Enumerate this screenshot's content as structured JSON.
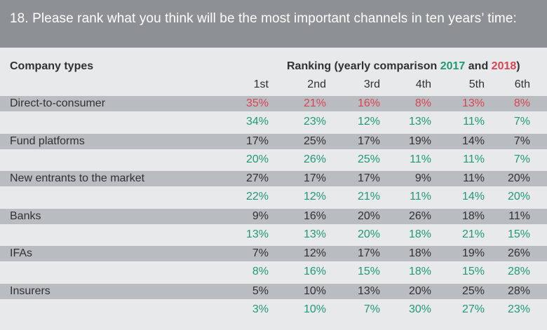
{
  "header": {
    "title": "18. Please rank what you think will be the most important channels in ten years’ time:"
  },
  "table": {
    "company_types_label": "Company types",
    "ranking_prefix": "Ranking (yearly comparison ",
    "ranking_year_a": "2017",
    "ranking_and": " and ",
    "ranking_year_b": "2018",
    "ranking_suffix": ")",
    "columns": [
      "1st",
      "2nd",
      "3rd",
      "4th",
      "5th",
      "6th"
    ]
  },
  "colors": {
    "banner": "#8d9196",
    "band": "#b9bdc2",
    "green": "#1f9a76",
    "red": "#d94452",
    "text": "#2f3133"
  },
  "chart_data": {
    "type": "table",
    "title": "18. Please rank what you think will be the most important channels in ten years’ time:",
    "columns": [
      "1st",
      "2nd",
      "3rd",
      "4th",
      "5th",
      "6th"
    ],
    "rows": [
      {
        "label": "Direct-to-consumer",
        "first_line": [
          "35%",
          "21%",
          "16%",
          "8%",
          "13%",
          "8%"
        ],
        "first_color": "red",
        "second_line": [
          "34%",
          "23%",
          "12%",
          "13%",
          "11%",
          "7%"
        ]
      },
      {
        "label": "Fund platforms",
        "first_line": [
          "17%",
          "25%",
          "17%",
          "19%",
          "14%",
          "7%"
        ],
        "first_color": "dark",
        "second_line": [
          "20%",
          "26%",
          "25%",
          "11%",
          "11%",
          "7%"
        ]
      },
      {
        "label": "New entrants to the market",
        "first_line": [
          "27%",
          "17%",
          "17%",
          "9%",
          "11%",
          "20%"
        ],
        "first_color": "dark",
        "second_line": [
          "22%",
          "12%",
          "21%",
          "11%",
          "14%",
          "20%"
        ]
      },
      {
        "label": "Banks",
        "first_line": [
          "9%",
          "16%",
          "20%",
          "26%",
          "18%",
          "11%"
        ],
        "first_color": "dark",
        "second_line": [
          "13%",
          "13%",
          "20%",
          "18%",
          "21%",
          "15%"
        ]
      },
      {
        "label": "IFAs",
        "first_line": [
          "7%",
          "12%",
          "17%",
          "18%",
          "19%",
          "26%"
        ],
        "first_color": "dark",
        "second_line": [
          "8%",
          "16%",
          "15%",
          "18%",
          "15%",
          "28%"
        ]
      },
      {
        "label": "Insurers",
        "first_line": [
          "5%",
          "10%",
          "13%",
          "20%",
          "25%",
          "28%"
        ],
        "first_color": "dark",
        "second_line": [
          "3%",
          "10%",
          "7%",
          "30%",
          "27%",
          "23%"
        ]
      }
    ]
  }
}
